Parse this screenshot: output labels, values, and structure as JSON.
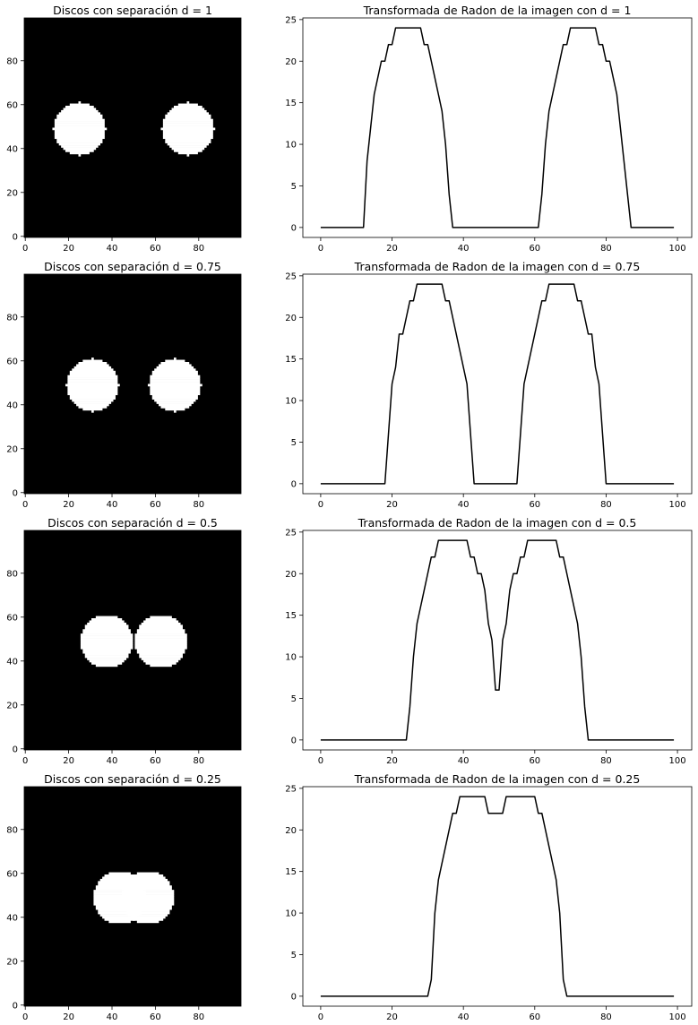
{
  "chart_data": [
    {
      "type": "heatmap",
      "title": "Discos con separación d = 1",
      "colormap": "gray",
      "xlim": [
        -0.5,
        99.5
      ],
      "ylim": [
        99.5,
        -0.5
      ],
      "xticks": [
        0,
        20,
        40,
        60,
        80
      ],
      "yticks": [
        0,
        20,
        40,
        60,
        80
      ],
      "xtick_labels": [
        "0",
        "20",
        "40",
        "60",
        "80"
      ],
      "ytick_labels": [
        "0",
        "20",
        "40",
        "60",
        "80"
      ],
      "disks": [
        {
          "cx": 25,
          "cy": 50,
          "r": 12
        },
        {
          "cx": 75,
          "cy": 50,
          "r": 12
        }
      ]
    },
    {
      "type": "line",
      "title": "Transformada de Radon de la imagen con d = 1",
      "xlim": [
        -5,
        104
      ],
      "ylim": [
        -1.2,
        25.2
      ],
      "xticks": [
        0,
        20,
        40,
        60,
        80,
        100
      ],
      "yticks": [
        0,
        5,
        10,
        15,
        20,
        25
      ],
      "xtick_labels": [
        "0",
        "20",
        "40",
        "60",
        "80",
        "100"
      ],
      "ytick_labels": [
        "0",
        "5",
        "10",
        "15",
        "20",
        "25"
      ],
      "series": [
        {
          "x": [
            0,
            12,
            13,
            14,
            15,
            16,
            17,
            18,
            19,
            20,
            21,
            22,
            28,
            29,
            30,
            31,
            32,
            33,
            34,
            35,
            36,
            37,
            38,
            61,
            62,
            63,
            64,
            65,
            66,
            67,
            68,
            69,
            70,
            71,
            77,
            78,
            79,
            80,
            81,
            82,
            83,
            84,
            85,
            86,
            87,
            99
          ],
          "y": [
            0,
            0,
            8,
            12,
            16,
            18,
            20,
            20,
            22,
            22,
            24,
            24,
            24,
            22,
            22,
            20,
            18,
            16,
            14,
            10,
            4,
            0,
            0,
            0,
            4,
            10,
            14,
            16,
            18,
            20,
            22,
            22,
            24,
            24,
            24,
            22,
            22,
            20,
            20,
            18,
            16,
            12,
            8,
            4,
            0,
            0
          ]
        }
      ]
    },
    {
      "type": "heatmap",
      "title": "Discos con separación d = 0.75",
      "colormap": "gray",
      "xlim": [
        -0.5,
        99.5
      ],
      "ylim": [
        99.5,
        -0.5
      ],
      "xticks": [
        0,
        20,
        40,
        60,
        80
      ],
      "yticks": [
        0,
        20,
        40,
        60,
        80
      ],
      "xtick_labels": [
        "0",
        "20",
        "40",
        "60",
        "80"
      ],
      "ytick_labels": [
        "0",
        "20",
        "40",
        "60",
        "80"
      ],
      "disks": [
        {
          "cx": 31,
          "cy": 50,
          "r": 12
        },
        {
          "cx": 69,
          "cy": 50,
          "r": 12
        }
      ]
    },
    {
      "type": "line",
      "title": "Transformada de Radon de la imagen con d = 0.75",
      "xlim": [
        -5,
        104
      ],
      "ylim": [
        -1.2,
        25.2
      ],
      "xticks": [
        0,
        20,
        40,
        60,
        80,
        100
      ],
      "yticks": [
        0,
        5,
        10,
        15,
        20,
        25
      ],
      "xtick_labels": [
        "0",
        "20",
        "40",
        "60",
        "80",
        "100"
      ],
      "ytick_labels": [
        "0",
        "5",
        "10",
        "15",
        "20",
        "25"
      ],
      "series": [
        {
          "x": [
            0,
            18,
            19,
            20,
            21,
            22,
            23,
            24,
            25,
            26,
            27,
            34,
            35,
            36,
            37,
            38,
            39,
            40,
            41,
            42,
            43,
            44,
            55,
            56,
            57,
            58,
            59,
            60,
            61,
            62,
            63,
            64,
            71,
            72,
            73,
            74,
            75,
            76,
            77,
            78,
            79,
            80,
            81,
            99
          ],
          "y": [
            0,
            0,
            6,
            12,
            14,
            18,
            18,
            20,
            22,
            22,
            24,
            24,
            22,
            22,
            20,
            18,
            16,
            14,
            12,
            6,
            0,
            0,
            0,
            6,
            12,
            14,
            16,
            18,
            20,
            22,
            22,
            24,
            24,
            22,
            22,
            20,
            18,
            18,
            14,
            12,
            6,
            0,
            0,
            0
          ]
        }
      ]
    },
    {
      "type": "heatmap",
      "title": "Discos con separación d = 0.5",
      "colormap": "gray",
      "xlim": [
        -0.5,
        99.5
      ],
      "ylim": [
        99.5,
        -0.5
      ],
      "xticks": [
        0,
        20,
        40,
        60,
        80
      ],
      "yticks": [
        0,
        20,
        40,
        60,
        80
      ],
      "xtick_labels": [
        "0",
        "20",
        "40",
        "60",
        "80"
      ],
      "ytick_labels": [
        "0",
        "20",
        "40",
        "60",
        "80"
      ],
      "disks": [
        {
          "cx": 37.5,
          "cy": 50,
          "r": 12
        },
        {
          "cx": 62.5,
          "cy": 50,
          "r": 12
        }
      ]
    },
    {
      "type": "line",
      "title": "Transformada de Radon de la imagen con d = 0.5",
      "xlim": [
        -5,
        104
      ],
      "ylim": [
        -1.2,
        25.2
      ],
      "xticks": [
        0,
        20,
        40,
        60,
        80,
        100
      ],
      "yticks": [
        0,
        5,
        10,
        15,
        20,
        25
      ],
      "xtick_labels": [
        "0",
        "20",
        "40",
        "60",
        "80",
        "100"
      ],
      "ytick_labels": [
        "0",
        "5",
        "10",
        "15",
        "20",
        "25"
      ],
      "series": [
        {
          "x": [
            0,
            24,
            25,
            26,
            27,
            28,
            29,
            30,
            31,
            32,
            33,
            40,
            41,
            42,
            43,
            44,
            45,
            46,
            47,
            48,
            49,
            50,
            51,
            52,
            53,
            54,
            55,
            56,
            57,
            58,
            59,
            66,
            67,
            68,
            69,
            70,
            71,
            72,
            73,
            74,
            75,
            99
          ],
          "y": [
            0,
            0,
            4,
            10,
            14,
            16,
            18,
            20,
            22,
            22,
            24,
            24,
            24,
            22,
            22,
            20,
            20,
            18,
            14,
            12,
            6,
            6,
            12,
            14,
            18,
            20,
            20,
            22,
            22,
            24,
            24,
            24,
            22,
            22,
            20,
            18,
            16,
            14,
            10,
            4,
            0,
            0
          ]
        }
      ]
    },
    {
      "type": "heatmap",
      "title": "Discos con separación d = 0.25",
      "colormap": "gray",
      "xlim": [
        -0.5,
        99.5
      ],
      "ylim": [
        99.5,
        -0.5
      ],
      "xticks": [
        0,
        20,
        40,
        60,
        80
      ],
      "yticks": [
        0,
        20,
        40,
        60,
        80
      ],
      "xtick_labels": [
        "0",
        "20",
        "40",
        "60",
        "80"
      ],
      "ytick_labels": [
        "0",
        "20",
        "40",
        "60",
        "80"
      ],
      "disks": [
        {
          "cx": 43.5,
          "cy": 50,
          "r": 12
        },
        {
          "cx": 56.5,
          "cy": 50,
          "r": 12
        }
      ]
    },
    {
      "type": "line",
      "title": "Transformada de Radon de la imagen con d = 0.25",
      "xlim": [
        -5,
        104
      ],
      "ylim": [
        -1.2,
        25.2
      ],
      "xticks": [
        0,
        20,
        40,
        60,
        80,
        100
      ],
      "yticks": [
        0,
        5,
        10,
        15,
        20,
        25
      ],
      "xtick_labels": [
        "0",
        "20",
        "40",
        "60",
        "80",
        "100"
      ],
      "ytick_labels": [
        "0",
        "5",
        "10",
        "15",
        "20",
        "25"
      ],
      "series": [
        {
          "x": [
            0,
            30,
            31,
            32,
            33,
            34,
            35,
            36,
            37,
            38,
            39,
            40,
            46,
            47,
            48,
            49,
            50,
            51,
            52,
            53,
            59,
            60,
            61,
            62,
            63,
            64,
            65,
            66,
            67,
            68,
            69,
            99
          ],
          "y": [
            0,
            0,
            2,
            10,
            14,
            16,
            18,
            20,
            22,
            22,
            24,
            24,
            24,
            22,
            22,
            22,
            22,
            22,
            24,
            24,
            24,
            24,
            22,
            22,
            20,
            18,
            16,
            14,
            10,
            2,
            0,
            0
          ]
        }
      ]
    }
  ]
}
